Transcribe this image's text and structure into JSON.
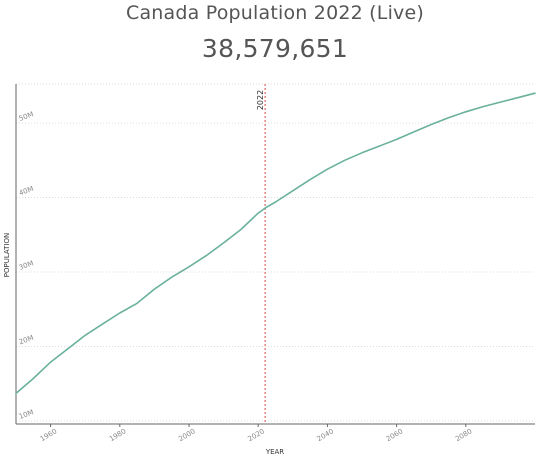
{
  "page": {
    "title": "Canada Population 2022 (Live)",
    "live_count": "38,579,651"
  },
  "chart_data": {
    "type": "line",
    "xlabel": "YEAR",
    "ylabel": "POPULATION",
    "xlim": [
      1950,
      2100
    ],
    "ylim": [
      10000000,
      55000000
    ],
    "x_ticks": [
      1960,
      1980,
      2000,
      2020,
      2040,
      2060,
      2080
    ],
    "x_tick_labels": [
      "1960",
      "1980",
      "2000",
      "2020",
      "2040",
      "2060",
      "2080"
    ],
    "y_ticks": [
      10000000,
      20000000,
      30000000,
      40000000,
      50000000
    ],
    "y_tick_labels": [
      "10M",
      "20M",
      "30M",
      "40M",
      "50M"
    ],
    "grid": "horizontal-dotted",
    "marker": {
      "x": 2022,
      "label": "2022",
      "color": "#e06666"
    },
    "series": [
      {
        "color": "#6ab19d",
        "x": [
          1950,
          1955,
          1960,
          1965,
          1970,
          1975,
          1980,
          1985,
          1990,
          1995,
          2000,
          2005,
          2010,
          2015,
          2020,
          2022,
          2025,
          2030,
          2035,
          2040,
          2045,
          2050,
          2055,
          2060,
          2065,
          2070,
          2075,
          2080,
          2085,
          2090,
          2095,
          2100
        ],
        "values": [
          13700000,
          15700000,
          17900000,
          19700000,
          21500000,
          23000000,
          24500000,
          25800000,
          27700000,
          29300000,
          30700000,
          32200000,
          33900000,
          35700000,
          37900000,
          38580000,
          39400000,
          40900000,
          42400000,
          43800000,
          45000000,
          46000000,
          46900000,
          47800000,
          48800000,
          49800000,
          50700000,
          51500000,
          52200000,
          52800000,
          53400000,
          54000000
        ]
      }
    ]
  }
}
